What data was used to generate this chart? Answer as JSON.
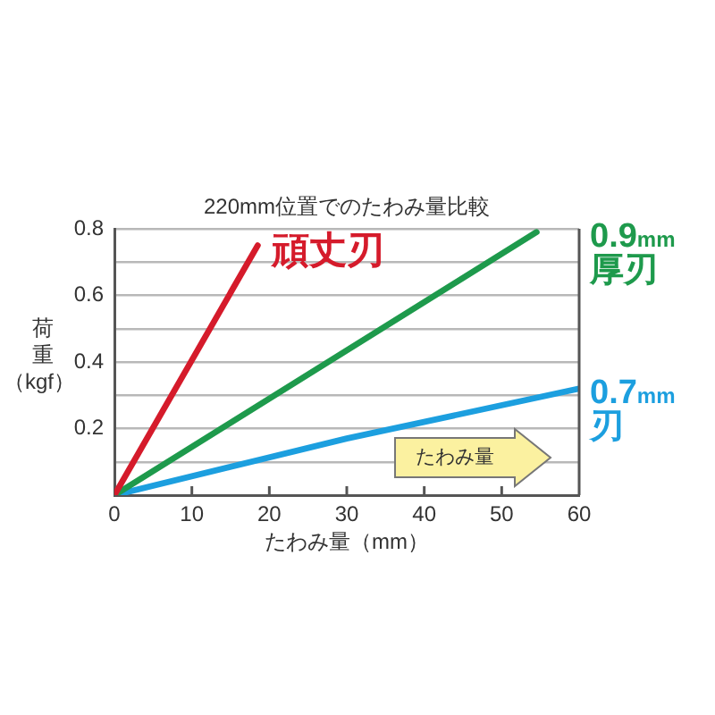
{
  "chart_data": {
    "type": "line",
    "title": "220mm位置でのたわみ量比較",
    "xlabel": "たわみ量（mm）",
    "ylabel": "荷重（kgf）",
    "annotations": [
      "たわみ量"
    ],
    "series": [
      {
        "name": "頑丈刃",
        "color": "#d51b2b",
        "x": [
          0,
          18.5
        ],
        "values": [
          0,
          0.75
        ]
      },
      {
        "name": "0.9mm 厚刃",
        "color": "#1e9a4c",
        "x": [
          0,
          54.5
        ],
        "values": [
          0,
          0.79
        ]
      },
      {
        "name": "0.7mm 刃",
        "color": "#1c9fdf",
        "x": [
          0,
          30,
          60
        ],
        "values": [
          0,
          0.17,
          0.32
        ]
      }
    ],
    "xlim": [
      0,
      60
    ],
    "xticks": [
      0,
      10,
      20,
      30,
      40,
      50,
      60
    ],
    "ylim": [
      0,
      0.8
    ],
    "yticks": [
      {
        "value": 0.1,
        "label": null
      },
      0.2,
      {
        "value": 0.3,
        "label": null
      },
      0.4,
      {
        "value": 0.5,
        "label": null
      },
      0.6,
      {
        "value": 0.7,
        "label": null
      },
      0.8
    ],
    "grid": "y",
    "legend": false,
    "marker": "none",
    "line_style": "solid"
  }
}
